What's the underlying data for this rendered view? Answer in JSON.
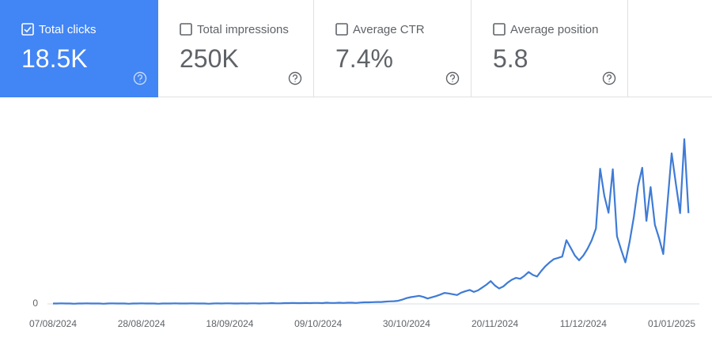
{
  "metrics": [
    {
      "label": "Total clicks",
      "value": "18.5K",
      "selected": true
    },
    {
      "label": "Total impressions",
      "value": "250K",
      "selected": false
    },
    {
      "label": "Average CTR",
      "value": "7.4%",
      "selected": false
    },
    {
      "label": "Average position",
      "value": "5.8",
      "selected": false
    }
  ],
  "chart_data": {
    "type": "line",
    "color": "#3f7bd6",
    "categories": [
      "07/08/2024",
      null,
      null,
      null,
      null,
      null,
      null,
      null,
      null,
      null,
      null,
      null,
      null,
      null,
      null,
      null,
      null,
      null,
      null,
      null,
      null,
      "28/08/2024",
      null,
      null,
      null,
      null,
      null,
      null,
      null,
      null,
      null,
      null,
      null,
      null,
      null,
      null,
      null,
      null,
      null,
      null,
      null,
      null,
      "18/09/2024",
      null,
      null,
      null,
      null,
      null,
      null,
      null,
      null,
      null,
      null,
      null,
      null,
      null,
      null,
      null,
      null,
      null,
      null,
      null,
      null,
      "09/10/2024",
      null,
      null,
      null,
      null,
      null,
      null,
      null,
      null,
      null,
      null,
      null,
      null,
      null,
      null,
      null,
      null,
      null,
      null,
      null,
      null,
      "30/10/2024",
      null,
      null,
      null,
      null,
      null,
      null,
      null,
      null,
      null,
      null,
      null,
      null,
      null,
      null,
      null,
      null,
      null,
      null,
      null,
      null,
      "20/11/2024",
      null,
      null,
      null,
      null,
      null,
      null,
      null,
      null,
      null,
      null,
      null,
      null,
      null,
      null,
      null,
      null,
      null,
      null,
      null,
      null,
      "11/12/2024",
      null,
      null,
      null,
      null,
      null,
      null,
      null,
      null,
      null,
      null,
      null,
      null,
      null,
      null,
      null,
      null,
      null,
      null,
      null,
      null,
      "01/01/2025",
      null,
      null,
      null,
      null
    ],
    "values": [
      2,
      2,
      3,
      2,
      2,
      1,
      2,
      2,
      3,
      2,
      2,
      2,
      1,
      2,
      3,
      2,
      2,
      2,
      1,
      2,
      2,
      3,
      2,
      2,
      2,
      1,
      2,
      2,
      2,
      3,
      2,
      2,
      2,
      3,
      2,
      2,
      2,
      1,
      2,
      3,
      2,
      3,
      3,
      2,
      2,
      3,
      2,
      3,
      3,
      2,
      3,
      3,
      4,
      3,
      3,
      4,
      4,
      5,
      4,
      4,
      5,
      4,
      5,
      5,
      4,
      6,
      5,
      5,
      6,
      5,
      6,
      6,
      5,
      7,
      8,
      8,
      9,
      10,
      10,
      12,
      13,
      14,
      16,
      22,
      30,
      35,
      38,
      42,
      36,
      28,
      34,
      40,
      48,
      57,
      54,
      50,
      46,
      58,
      66,
      72,
      62,
      70,
      85,
      100,
      118,
      95,
      80,
      90,
      110,
      125,
      135,
      130,
      145,
      165,
      150,
      142,
      170,
      195,
      215,
      232,
      238,
      245,
      330,
      290,
      250,
      226,
      250,
      285,
      330,
      390,
      700,
      560,
      472,
      697,
      350,
      280,
      215,
      320,
      450,
      610,
      705,
      430,
      605,
      410,
      340,
      258,
      520,
      780,
      620,
      470,
      853,
      470
    ],
    "ylim": [
      0,
      1000
    ],
    "yticks": [
      0
    ]
  }
}
